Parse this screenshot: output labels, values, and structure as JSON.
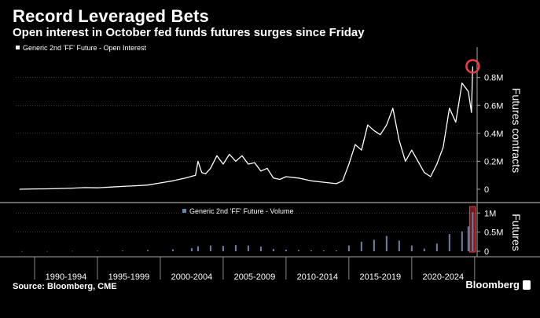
{
  "header": {
    "title": "Record Leveraged Bets",
    "subtitle": "Open interest in October fed funds futures surges since Friday"
  },
  "footer": {
    "source": "Source: Bloomberg, CME",
    "brand": "Bloomberg"
  },
  "colors": {
    "background": "#000000",
    "open_interest_line": "#ffffff",
    "volume_bars": "#6b82a8",
    "highlight": "#e8404a",
    "grid": "#555555"
  },
  "chart_data": [
    {
      "type": "line",
      "title": "Record Leveraged Bets",
      "ylabel": "Futures contracts",
      "ylim": [
        0,
        950000
      ],
      "yticks": [
        0,
        200000,
        400000,
        600000,
        800000
      ],
      "ytick_labels": [
        "0",
        "0.2M",
        "0.4M",
        "0.6M",
        "0.8M"
      ],
      "xlim": [
        1988.5,
        2025.2
      ],
      "series": [
        {
          "name": "Generic 2nd 'FF' Future - Open Interest",
          "x": [
            1988.8,
            1990,
            1991,
            1992,
            1993,
            1994,
            1995,
            1996,
            1997,
            1998,
            1999,
            2000,
            2001,
            2002,
            2002.8,
            2003,
            2003.3,
            2003.6,
            2004,
            2004.5,
            2005,
            2005.5,
            2006,
            2006.5,
            2007,
            2007.5,
            2008,
            2008.5,
            2009,
            2009.5,
            2010,
            2011,
            2012,
            2013,
            2014,
            2014.5,
            2015,
            2015.5,
            2016,
            2016.5,
            2017,
            2017.5,
            2018,
            2018.5,
            2019,
            2019.5,
            2020,
            2020.5,
            2021,
            2021.5,
            2022,
            2022.5,
            2023,
            2023.5,
            2024,
            2024.5,
            2024.75,
            2024.85
          ],
          "y": [
            0,
            2000,
            3000,
            5000,
            8000,
            12000,
            10000,
            15000,
            20000,
            25000,
            30000,
            45000,
            60000,
            80000,
            100000,
            200000,
            120000,
            110000,
            150000,
            240000,
            180000,
            250000,
            200000,
            240000,
            180000,
            190000,
            130000,
            150000,
            80000,
            70000,
            90000,
            80000,
            60000,
            50000,
            40000,
            60000,
            180000,
            320000,
            280000,
            460000,
            420000,
            390000,
            460000,
            580000,
            350000,
            200000,
            280000,
            200000,
            120000,
            90000,
            180000,
            300000,
            580000,
            480000,
            760000,
            700000,
            550000,
            880000
          ]
        }
      ],
      "highlight_point": {
        "x": 2024.85,
        "y": 880000
      }
    },
    {
      "type": "bar",
      "ylabel": "Futures",
      "ylim": [
        0,
        1150000
      ],
      "yticks": [
        0,
        500000,
        1000000
      ],
      "ytick_labels": [
        "0",
        "0.5M",
        "1M"
      ],
      "series": [
        {
          "name": "Generic 2nd 'FF' Future - Volume",
          "x": [
            1989,
            1991,
            1993,
            1995,
            1997,
            1999,
            2001,
            2002.5,
            2003,
            2004,
            2005,
            2006,
            2007,
            2008,
            2009,
            2010,
            2011,
            2012,
            2013,
            2014,
            2015,
            2016,
            2017,
            2018,
            2019,
            2020,
            2021,
            2022,
            2023,
            2024,
            2024.5,
            2024.85
          ],
          "values": [
            2000,
            4000,
            6000,
            10000,
            15000,
            30000,
            50000,
            80000,
            130000,
            150000,
            140000,
            160000,
            150000,
            120000,
            60000,
            40000,
            30000,
            25000,
            20000,
            20000,
            150000,
            250000,
            300000,
            400000,
            280000,
            150000,
            70000,
            200000,
            450000,
            520000,
            650000,
            1020000
          ]
        }
      ],
      "highlight_band": {
        "x_start": 2024.6,
        "x_end": 2025.05
      }
    }
  ],
  "x_axis": {
    "period_labels": [
      "1990-1994",
      "1995-1999",
      "2000-2004",
      "2005-2009",
      "2010-2014",
      "2015-2019",
      "2020-2024"
    ]
  }
}
